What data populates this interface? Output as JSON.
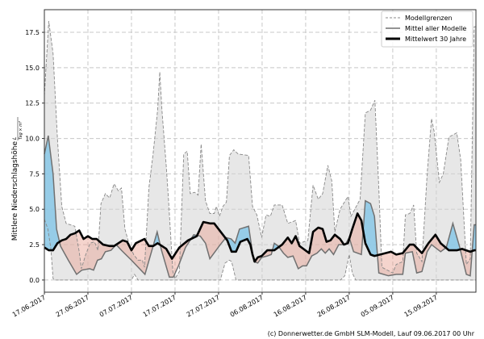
{
  "chart_data": {
    "type": "area",
    "title": "",
    "ylabel": "Mittlere Niederschlagshöhe",
    "ylabel_unit_num": "L",
    "ylabel_unit_den": "Tag × m²",
    "x_unit": "days since 17.06.2017",
    "xlim": [
      0,
      99.1
    ],
    "ylim": [
      -0.86,
      19.1
    ],
    "yticks": [
      0.0,
      2.5,
      5.0,
      7.5,
      10.0,
      12.5,
      15.0,
      17.5
    ],
    "ytick_labels": [
      "0.0",
      "2.5",
      "5.0",
      "7.5",
      "10.0",
      "12.5",
      "15.0",
      "17.5"
    ],
    "xticks": [
      0,
      10,
      20,
      30,
      40,
      50,
      60,
      70,
      80,
      90
    ],
    "xtick_labels": [
      "17.06.2017",
      "27.06.2017",
      "07.07.2017",
      "17.07.2017",
      "27.07.2017",
      "06.08.2017",
      "16.08.2017",
      "26.08.2017",
      "05.09.2017",
      "15.09.2017"
    ],
    "grid": true,
    "legend_position": "top-right",
    "legend": [
      "Modellgrenzen",
      "Mittel aller Modelle",
      "Mittelwert 30 Jahre"
    ],
    "colors": {
      "band": "#d3d3d3",
      "above": "#87c7e6",
      "below": "#e8a090",
      "mean": "#707070",
      "climate": "#000000"
    },
    "upper": [
      [
        0,
        13
      ],
      [
        1,
        18.3
      ],
      [
        2,
        16
      ],
      [
        3,
        10
      ],
      [
        4,
        5.2
      ],
      [
        5,
        4
      ],
      [
        6,
        3.9
      ],
      [
        7,
        3.8
      ],
      [
        8,
        2.0
      ],
      [
        8.5,
        0.8
      ],
      [
        9.5,
        1.8
      ],
      [
        10.5,
        2.6
      ],
      [
        11.5,
        2.7
      ],
      [
        12.3,
        2.1
      ],
      [
        13,
        5.4
      ],
      [
        14,
        6.1
      ],
      [
        15,
        5.8
      ],
      [
        16,
        6.8
      ],
      [
        17,
        6.3
      ],
      [
        17.7,
        6.5
      ],
      [
        18.5,
        3.6
      ],
      [
        19.5,
        2.5
      ],
      [
        20.5,
        1.8
      ],
      [
        21.5,
        1.4
      ],
      [
        22.5,
        1.4
      ],
      [
        23,
        0.9
      ],
      [
        24,
        6.5
      ],
      [
        25,
        9
      ],
      [
        26,
        12
      ],
      [
        26.5,
        14.7
      ],
      [
        27,
        12
      ],
      [
        28,
        8
      ],
      [
        28.5,
        5.7
      ],
      [
        29.5,
        0.6
      ],
      [
        30,
        0.1
      ],
      [
        31,
        0.6
      ],
      [
        32,
        8.9
      ],
      [
        32.8,
        9.1
      ],
      [
        33.5,
        6.1
      ],
      [
        34.5,
        6.2
      ],
      [
        35.3,
        6.0
      ],
      [
        36,
        9.6
      ],
      [
        37,
        5.6
      ],
      [
        38,
        4.7
      ],
      [
        39,
        4.7
      ],
      [
        39.5,
        5.2
      ],
      [
        40.2,
        4.5
      ],
      [
        41,
        5.2
      ],
      [
        41.8,
        5.5
      ],
      [
        42.5,
        8.8
      ],
      [
        43.5,
        9.2
      ],
      [
        44.5,
        8.9
      ],
      [
        46.9,
        8.8
      ],
      [
        47.8,
        5.2
      ],
      [
        48.8,
        4.6
      ],
      [
        49.9,
        3.0
      ],
      [
        50.9,
        4.6
      ],
      [
        51.9,
        4.5
      ],
      [
        52.8,
        5.3
      ],
      [
        54.6,
        5.3
      ],
      [
        55.9,
        4.0
      ],
      [
        57.7,
        4.2
      ],
      [
        58.6,
        2.6
      ],
      [
        60.5,
        2.8
      ],
      [
        61.7,
        6.7
      ],
      [
        62.9,
        5.7
      ],
      [
        63.9,
        6.1
      ],
      [
        65.1,
        8.1
      ],
      [
        66,
        7.0
      ],
      [
        66.7,
        3.4
      ],
      [
        67.9,
        5.0
      ],
      [
        69.7,
        5.9
      ],
      [
        70.4,
        4.5
      ],
      [
        72.5,
        5.7
      ],
      [
        73.7,
        11.8
      ],
      [
        74.9,
        12.0
      ],
      [
        75.9,
        12.7
      ],
      [
        76.8,
        6.5
      ],
      [
        77.5,
        0.9
      ],
      [
        80,
        0.5
      ],
      [
        80.8,
        1.1
      ],
      [
        82.3,
        1.3
      ],
      [
        82.9,
        4.6
      ],
      [
        83.9,
        4.7
      ],
      [
        84.8,
        5.3
      ],
      [
        85.5,
        1.9
      ],
      [
        86.7,
        1.3
      ],
      [
        87.9,
        7.5
      ],
      [
        88.9,
        11.4
      ],
      [
        89.5,
        10.5
      ],
      [
        90.7,
        6.9
      ],
      [
        91.6,
        7.5
      ],
      [
        92.9,
        10.1
      ],
      [
        94.7,
        10.4
      ],
      [
        95.6,
        8.5
      ],
      [
        96.9,
        1.1
      ],
      [
        97.8,
        1.5
      ],
      [
        98.7,
        17.9
      ],
      [
        99.1,
        17.9
      ]
    ],
    "lower": [
      [
        0,
        4.3
      ],
      [
        0.8,
        3.6
      ],
      [
        1.5,
        2.2
      ],
      [
        2,
        0.1
      ],
      [
        2.5,
        0
      ],
      [
        20,
        0
      ],
      [
        20.7,
        0.4
      ],
      [
        21.5,
        0
      ],
      [
        40.4,
        0
      ],
      [
        41.5,
        1.2
      ],
      [
        42.5,
        1.4
      ],
      [
        43,
        1.3
      ],
      [
        44,
        0
      ],
      [
        68,
        0
      ],
      [
        69,
        0.3
      ],
      [
        70,
        1.8
      ],
      [
        70.7,
        0.5
      ],
      [
        71.5,
        0
      ],
      [
        99.1,
        0
      ]
    ],
    "model_mean": [
      [
        0,
        8.9
      ],
      [
        0.9,
        10.2
      ],
      [
        2,
        7.5
      ],
      [
        2.8,
        3.6
      ],
      [
        3.7,
        2.4
      ],
      [
        5.5,
        1.4
      ],
      [
        7.4,
        0.4
      ],
      [
        8.6,
        0.7
      ],
      [
        10.4,
        0.8
      ],
      [
        11.3,
        0.7
      ],
      [
        12.2,
        1.4
      ],
      [
        13.1,
        1.5
      ],
      [
        14,
        2.0
      ],
      [
        15.3,
        2.1
      ],
      [
        16.5,
        2.5
      ],
      [
        17.7,
        2.1
      ],
      [
        20,
        1.4
      ],
      [
        23.1,
        0.4
      ],
      [
        24.6,
        2.0
      ],
      [
        25.9,
        3.4
      ],
      [
        26.9,
        2.1
      ],
      [
        28.7,
        0.2
      ],
      [
        29.6,
        0.2
      ],
      [
        30.8,
        1.0
      ],
      [
        32.4,
        2.3
      ],
      [
        34.3,
        3.2
      ],
      [
        35.8,
        3.1
      ],
      [
        37,
        2.6
      ],
      [
        38,
        1.5
      ],
      [
        39.2,
        2.0
      ],
      [
        40.4,
        2.5
      ],
      [
        41.7,
        3.0
      ],
      [
        42.9,
        2.9
      ],
      [
        43.8,
        2.6
      ],
      [
        44.8,
        3.6
      ],
      [
        46.9,
        3.8
      ],
      [
        48.1,
        1.3
      ],
      [
        49,
        1.2
      ],
      [
        49.9,
        1.6
      ],
      [
        51.2,
        1.7
      ],
      [
        52.1,
        1.8
      ],
      [
        52.8,
        2.6
      ],
      [
        53.7,
        2.4
      ],
      [
        54.9,
        1.9
      ],
      [
        55.9,
        1.6
      ],
      [
        57.1,
        1.7
      ],
      [
        58.3,
        0.8
      ],
      [
        59.3,
        1.0
      ],
      [
        60.2,
        1.0
      ],
      [
        61.4,
        1.7
      ],
      [
        62.6,
        1.9
      ],
      [
        63.6,
        2.2
      ],
      [
        64.5,
        1.9
      ],
      [
        65.4,
        2.2
      ],
      [
        66.4,
        1.8
      ],
      [
        67.6,
        2.5
      ],
      [
        69.1,
        2.5
      ],
      [
        70,
        3.0
      ],
      [
        71,
        2.0
      ],
      [
        72.8,
        1.8
      ],
      [
        73.7,
        5.6
      ],
      [
        74.9,
        5.4
      ],
      [
        75.8,
        4.5
      ],
      [
        76.8,
        0.5
      ],
      [
        79,
        0.3
      ],
      [
        80.8,
        0.4
      ],
      [
        82.3,
        0.4
      ],
      [
        82.9,
        1.9
      ],
      [
        84.5,
        2.0
      ],
      [
        85.5,
        0.5
      ],
      [
        86.7,
        0.6
      ],
      [
        87.9,
        2.0
      ],
      [
        88.9,
        2.5
      ],
      [
        91,
        2.0
      ],
      [
        92.3,
        2.3
      ],
      [
        93.8,
        4.0
      ],
      [
        95.3,
        2.4
      ],
      [
        96.9,
        0.4
      ],
      [
        97.8,
        0.3
      ],
      [
        98.7,
        3.9
      ],
      [
        99.1,
        3.9
      ]
    ],
    "climate_mean": [
      [
        0,
        2.3
      ],
      [
        1,
        2.1
      ],
      [
        2,
        2.1
      ],
      [
        3,
        2.6
      ],
      [
        4,
        2.8
      ],
      [
        5,
        2.9
      ],
      [
        6,
        3.2
      ],
      [
        7,
        3.3
      ],
      [
        8,
        3.5
      ],
      [
        9,
        2.9
      ],
      [
        10,
        3.1
      ],
      [
        11,
        2.9
      ],
      [
        12,
        2.9
      ],
      [
        13.5,
        2.5
      ],
      [
        15,
        2.4
      ],
      [
        16,
        2.4
      ],
      [
        17,
        2.6
      ],
      [
        18,
        2.8
      ],
      [
        19,
        2.7
      ],
      [
        20,
        2.1
      ],
      [
        21,
        2.6
      ],
      [
        23,
        2.9
      ],
      [
        24,
        2.4
      ],
      [
        25,
        2.4
      ],
      [
        26,
        2.6
      ],
      [
        28,
        2.2
      ],
      [
        29.3,
        1.5
      ],
      [
        31,
        2.3
      ],
      [
        33,
        2.8
      ],
      [
        35,
        3.1
      ],
      [
        36.5,
        4.1
      ],
      [
        38,
        4.0
      ],
      [
        39,
        4.0
      ],
      [
        40.5,
        3.4
      ],
      [
        42,
        2.8
      ],
      [
        43,
        2.0
      ],
      [
        44,
        2.0
      ],
      [
        45,
        2.7
      ],
      [
        46.6,
        2.9
      ],
      [
        47.3,
        2.5
      ],
      [
        47.8,
        1.8
      ],
      [
        48.3,
        1.3
      ],
      [
        49,
        1.6
      ],
      [
        49.9,
        1.7
      ],
      [
        51.2,
        2.1
      ],
      [
        52.8,
        2.1
      ],
      [
        54.6,
        2.5
      ],
      [
        55.9,
        3.0
      ],
      [
        56.8,
        2.6
      ],
      [
        57.7,
        3.1
      ],
      [
        58.6,
        2.4
      ],
      [
        60.8,
        1.9
      ],
      [
        61.7,
        3.4
      ],
      [
        62.9,
        3.7
      ],
      [
        63.9,
        3.6
      ],
      [
        64.8,
        2.7
      ],
      [
        65.7,
        2.8
      ],
      [
        66.7,
        3.2
      ],
      [
        67.9,
        2.9
      ],
      [
        68.8,
        2.5
      ],
      [
        69.7,
        2.6
      ],
      [
        70.7,
        3.6
      ],
      [
        71.9,
        4.7
      ],
      [
        72.8,
        4.2
      ],
      [
        73.7,
        2.6
      ],
      [
        74.9,
        1.8
      ],
      [
        75.8,
        1.7
      ],
      [
        79.6,
        2.0
      ],
      [
        80.8,
        1.8
      ],
      [
        82.3,
        1.9
      ],
      [
        83.9,
        2.5
      ],
      [
        84.8,
        2.5
      ],
      [
        86.7,
        1.9
      ],
      [
        88.2,
        2.6
      ],
      [
        89.8,
        3.2
      ],
      [
        91,
        2.6
      ],
      [
        92.9,
        2.1
      ],
      [
        94.7,
        2.1
      ],
      [
        95.9,
        2.2
      ],
      [
        97.8,
        2.0
      ],
      [
        98.7,
        2.1
      ],
      [
        99.1,
        2.1
      ]
    ]
  },
  "footer": "(c) Donnerwetter.de GmbH SLM-Modell, Lauf 09.06.2017 00 Uhr"
}
